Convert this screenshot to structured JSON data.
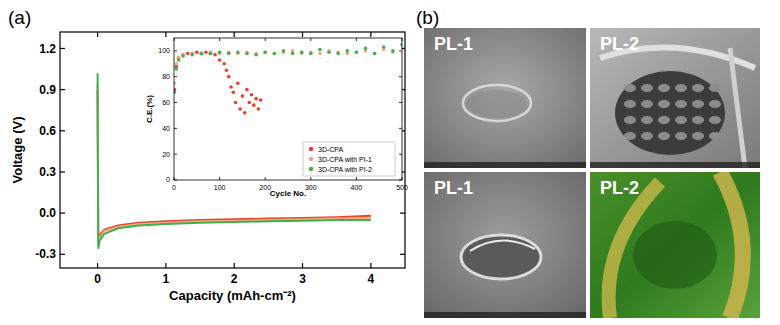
{
  "panel_labels": [
    "(a)",
    "(b)"
  ],
  "chart_data": [
    {
      "type": "line",
      "x_label": "Capacity (mAh-cm⁻²)",
      "y_label": "Voltage (V)",
      "xlim": [
        -0.55,
        4.5
      ],
      "ylim": [
        -0.4,
        1.32
      ],
      "xticks": [
        0,
        1,
        2,
        3,
        4
      ],
      "yticks": [
        -0.3,
        {
          "value": 0,
          "label": "0.0"
        },
        0.3,
        0.6,
        0.9,
        1.2
      ],
      "grid": false,
      "x": [
        0,
        0.01,
        0.03,
        0.1,
        0.3,
        0.6,
        1,
        1.5,
        2,
        2.5,
        3,
        3.5,
        4
      ],
      "series": [
        {
          "color": "#e8412c",
          "values": [
            0.9,
            -0.2,
            -0.16,
            -0.12,
            -0.09,
            -0.07,
            -0.06,
            -0.05,
            -0.045,
            -0.04,
            -0.035,
            -0.03,
            -0.02
          ]
        },
        {
          "color": "#f4a582",
          "values": [
            0.95,
            -0.23,
            -0.18,
            -0.13,
            -0.1,
            -0.08,
            -0.07,
            -0.06,
            -0.055,
            -0.05,
            -0.045,
            -0.04,
            -0.035
          ]
        },
        {
          "color": "#3cb44b",
          "values": [
            1.02,
            -0.26,
            -0.2,
            -0.15,
            -0.11,
            -0.09,
            -0.08,
            -0.07,
            -0.065,
            -0.06,
            -0.055,
            -0.05,
            -0.05
          ]
        }
      ]
    },
    {
      "type": "scatter",
      "x_label": "Cycle No.",
      "y_label": "C.E.(%)",
      "xlim": [
        0,
        500
      ],
      "ylim": [
        0,
        110
      ],
      "xticks": [
        0,
        100,
        200,
        300,
        400,
        500
      ],
      "yticks": [
        0,
        20,
        40,
        60,
        80,
        100
      ],
      "grid": false,
      "legend": "lower right",
      "series": [
        {
          "name": "3D-CPA",
          "color": "#e8412c",
          "marker": "circle",
          "x": [
            1,
            5,
            10,
            20,
            30,
            40,
            50,
            60,
            70,
            80,
            90,
            100,
            110,
            115,
            120,
            125,
            130,
            135,
            140,
            145,
            150,
            155,
            160,
            165,
            170,
            175,
            180,
            185,
            190
          ],
          "values": [
            70,
            88,
            94,
            97,
            98,
            98,
            99,
            98,
            99,
            98,
            97,
            93,
            90,
            85,
            80,
            72,
            68,
            60,
            75,
            55,
            65,
            52,
            70,
            60,
            66,
            58,
            63,
            55,
            62
          ]
        },
        {
          "name": "3D-CPA with PI-1",
          "color": "#f4a582",
          "marker": "circle",
          "x": [
            1,
            5,
            10,
            20,
            40,
            60,
            80,
            100,
            120,
            140,
            160,
            180,
            200,
            220,
            240,
            260,
            280,
            300,
            320,
            340,
            360,
            380,
            400,
            420,
            440,
            460,
            480,
            500
          ],
          "values": [
            75,
            90,
            95,
            97,
            98,
            98,
            99,
            98,
            99,
            98,
            99,
            98,
            99,
            98,
            99,
            100,
            98,
            99,
            98,
            100,
            99,
            98,
            99,
            100,
            98,
            101,
            99,
            100
          ]
        },
        {
          "name": "3D-CPA with PI-2",
          "color": "#3cb44b",
          "marker": "circle",
          "x": [
            1,
            5,
            10,
            20,
            40,
            60,
            80,
            100,
            120,
            140,
            160,
            180,
            200,
            220,
            240,
            260,
            280,
            300,
            320,
            340,
            360,
            380,
            400,
            420,
            440,
            460,
            480,
            500
          ],
          "values": [
            68,
            86,
            93,
            96,
            97,
            98,
            98,
            99,
            98,
            99,
            98,
            97,
            99,
            98,
            100,
            98,
            99,
            98,
            101,
            99,
            98,
            100,
            99,
            102,
            98,
            103,
            100,
            105
          ]
        }
      ]
    }
  ],
  "images": [
    {
      "label": "PL-1"
    },
    {
      "label": "PL-2"
    },
    {
      "label": "PL-1"
    },
    {
      "label": "PL-2"
    }
  ]
}
